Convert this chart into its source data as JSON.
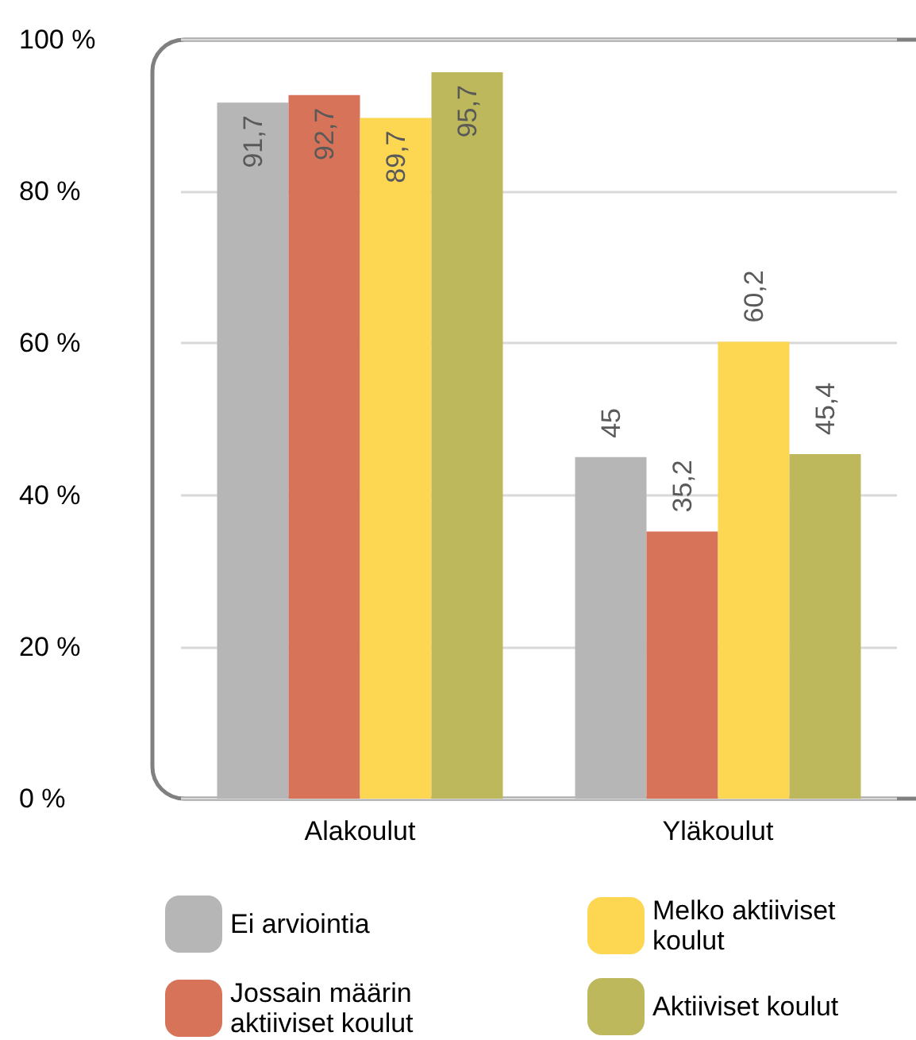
{
  "chart_data": {
    "type": "bar",
    "categories": [
      "Alakoulut",
      "Yläkoulut"
    ],
    "series": [
      {
        "name": "Ei arviointia",
        "color": "#b6b6b6",
        "values": [
          91.7,
          45
        ],
        "value_labels": [
          "91,7",
          "45"
        ]
      },
      {
        "name": "Jossain määrin aktiiviset koulut",
        "color": "#d67358",
        "values": [
          92.7,
          35.2
        ],
        "value_labels": [
          "92,7",
          "35,2"
        ]
      },
      {
        "name": "Melko aktiiviset koulut",
        "color": "#fdd652",
        "values": [
          89.7,
          60.2
        ],
        "value_labels": [
          "89,7",
          "60,2"
        ]
      },
      {
        "name": "Aktiiviset koulut",
        "color": "#bdb85b",
        "values": [
          95.7,
          45.4
        ],
        "value_labels": [
          "95,7",
          "45,4"
        ]
      }
    ],
    "ylim": [
      0,
      100
    ],
    "yticks": [
      {
        "value": 0,
        "label": "0 %"
      },
      {
        "value": 20,
        "label": "20 %"
      },
      {
        "value": 40,
        "label": "40 %"
      },
      {
        "value": 60,
        "label": "60 %"
      },
      {
        "value": 80,
        "label": "80 %"
      },
      {
        "value": 100,
        "label": "100 %"
      }
    ],
    "grid": "y",
    "legend": "bottom"
  }
}
